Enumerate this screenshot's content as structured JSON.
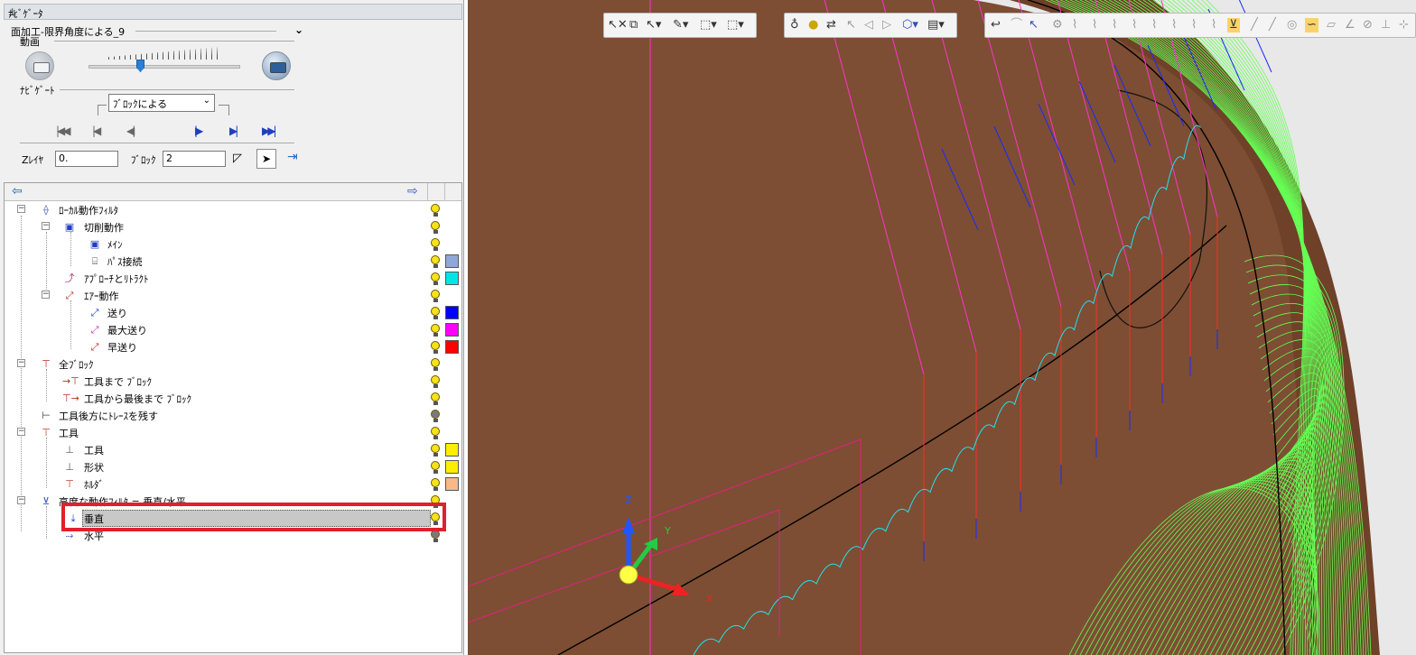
{
  "panel": {
    "title": "ﾅﾋﾞｹﾞｰﾀ",
    "operation_name": "面加工-限界角度による_9",
    "group_animation": "動画",
    "group_navigate": "ﾅﾋﾞｹﾞｰﾄ",
    "block_mode": "ﾌﾞﾛｯｸによる",
    "zlayer_label": "Zﾚｲﾔ",
    "zlayer_value": "0.",
    "block_label": "ﾌﾞﾛｯｸ",
    "block_value": "2"
  },
  "tree": {
    "items": [
      {
        "label": "ﾛｰｶﾙ動作ﾌｨﾙﾀ",
        "visible": true
      },
      {
        "label": "切削動作",
        "visible": true
      },
      {
        "label": "ﾒｲﾝ",
        "visible": true
      },
      {
        "label": "ﾊﾟｽ接続",
        "visible": true,
        "color": "#8fa8d8"
      },
      {
        "label": "ｱﾌﾟﾛｰﾁとﾘﾄﾗｸﾄ",
        "visible": true,
        "color": "#00e5e5"
      },
      {
        "label": "ｴｱｰ動作",
        "visible": true
      },
      {
        "label": "送り",
        "visible": true,
        "color": "#0000ff"
      },
      {
        "label": "最大送り",
        "visible": true,
        "color": "#ff00ff"
      },
      {
        "label": "早送り",
        "visible": true,
        "color": "#ff0000"
      },
      {
        "label": "全ﾌﾞﾛｯｸ",
        "visible": true
      },
      {
        "label": "工具まで ﾌﾞﾛｯｸ",
        "visible": true
      },
      {
        "label": "工具から最後まで ﾌﾞﾛｯｸ",
        "visible": true
      },
      {
        "label": "工具後方にﾄﾚｰｽを残す",
        "visible": false
      },
      {
        "label": "工具",
        "visible": true
      },
      {
        "label": "工具",
        "visible": true,
        "color": "#ffee00"
      },
      {
        "label": "形状",
        "visible": true,
        "color": "#ffee00"
      },
      {
        "label": "ﾎﾙﾀﾞ",
        "visible": true,
        "color": "#f7b98a"
      },
      {
        "label": "高度な動作ﾌｨﾙﾀ = 垂直/水平",
        "visible": true
      },
      {
        "label": "垂直",
        "visible": true,
        "selected": true
      },
      {
        "label": "水平",
        "visible": false
      }
    ]
  },
  "viewport": {
    "background": "#7d4e33",
    "axes": {
      "x": "X",
      "y": "Y",
      "z": "Z"
    }
  }
}
